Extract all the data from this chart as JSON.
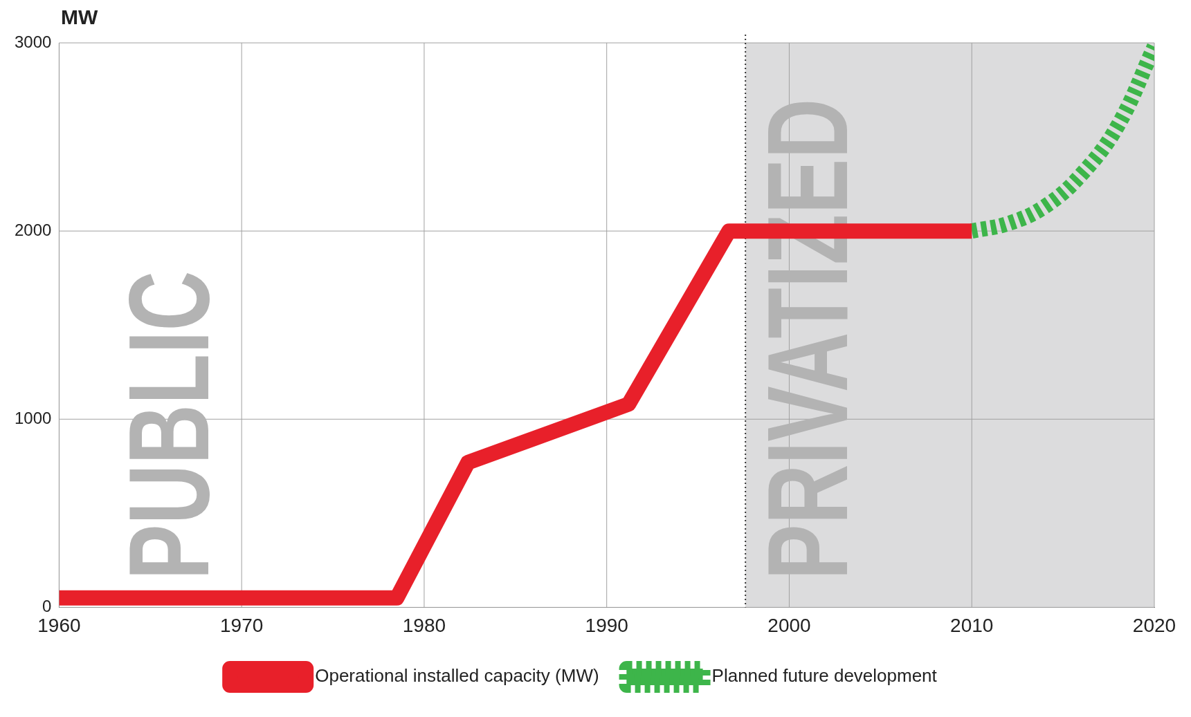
{
  "chart_data": {
    "type": "line",
    "ylabel": "MW",
    "xlim": [
      1960,
      2020
    ],
    "xticks": [
      1960,
      1970,
      1980,
      1990,
      2000,
      2010,
      2020
    ],
    "ylim": [
      0,
      3000
    ],
    "yticks": [
      0,
      1000,
      2000,
      3000
    ],
    "grid": true,
    "legend": "bottom",
    "marker": "none",
    "series": [
      {
        "name": "Operational installed capacity (MW)",
        "color": "#e8202a",
        "line_style": "solid",
        "x": [
          1960,
          1978.5,
          1982.4,
          1991.2,
          1996.7,
          2010
        ],
        "values": [
          50,
          50,
          770,
          1080,
          2000,
          2000
        ]
      },
      {
        "name": "Planned future development",
        "color": "#3db54a",
        "line_style": "dashed",
        "x": [
          2010,
          2012,
          2014,
          2016,
          2018,
          2020
        ],
        "values": [
          2000,
          2040,
          2130,
          2300,
          2560,
          2980
        ]
      }
    ],
    "bands": [
      {
        "axis": "x",
        "from": 1997.6,
        "to": 2020,
        "color": "#dcdcdd"
      }
    ],
    "ref_lines": [
      {
        "axis": "x",
        "value": 1997.6,
        "color": "#333333",
        "line_style": "dotted"
      }
    ],
    "annotations": [
      "PUBLIC",
      "PRIVATIZED"
    ]
  }
}
